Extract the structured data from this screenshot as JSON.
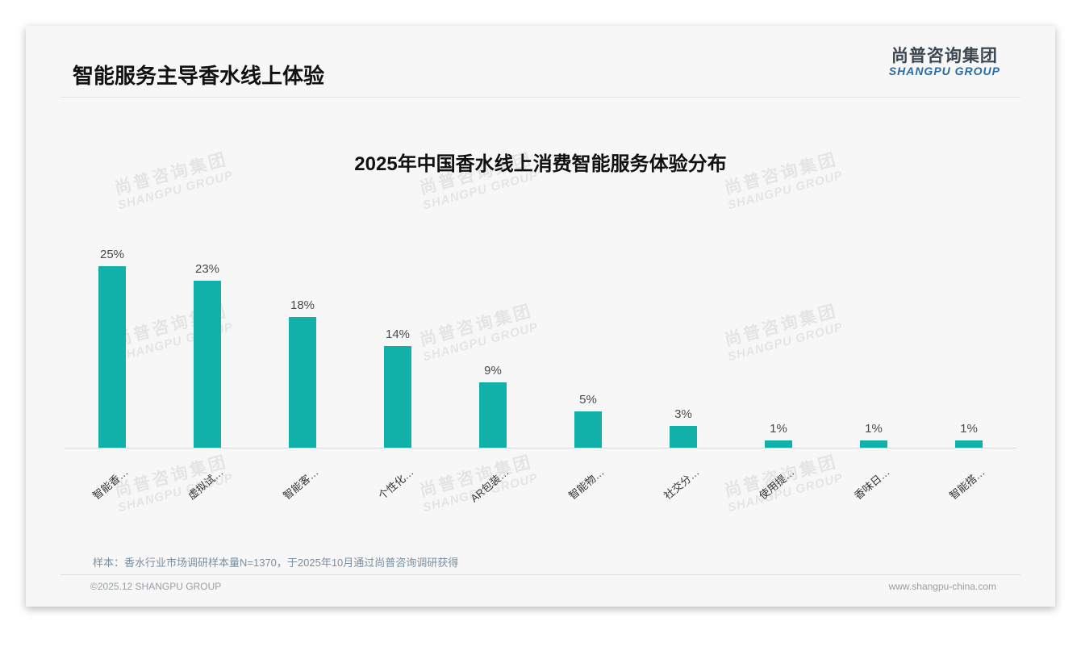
{
  "page": {
    "header": {
      "title": "智能服务主导香水线上体验",
      "logo": {
        "cn": "尚普咨询集团",
        "en": "SHANGPU GROUP"
      }
    },
    "watermark": {
      "cn": "尚普咨询集团",
      "en": "SHANGPU GROUP"
    },
    "footnote": "样本：香水行业市场调研样本量N=1370，于2025年10月通过尚普咨询调研获得",
    "footer": {
      "copyright": "©2025.12 SHANGPU GROUP",
      "website": "www.shangpu-china.com"
    }
  },
  "chart_data": {
    "type": "bar",
    "title": "2025年中国香水线上消费智能服务体验分布",
    "categories": [
      "智能香…",
      "虚拟试…",
      "智能客…",
      "个性化…",
      "AR包装…",
      "智能物…",
      "社交分…",
      "使用提…",
      "香味日…",
      "智能搭…"
    ],
    "values": [
      25,
      23,
      18,
      14,
      9,
      5,
      3,
      1,
      1,
      1
    ],
    "unit": "%",
    "value_labels": [
      "25%",
      "23%",
      "18%",
      "14%",
      "9%",
      "5%",
      "3%",
      "1%",
      "1%",
      "1%"
    ],
    "bar_color": "#11b1a9",
    "xlabel": "",
    "ylabel": "",
    "ylim": [
      0,
      27
    ],
    "grid": false,
    "legend": null,
    "category_label_rotation_deg": -40
  }
}
